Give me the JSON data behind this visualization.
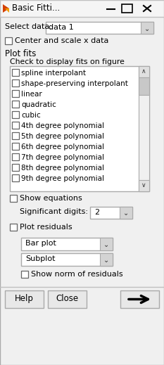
{
  "title": "Basic Fitti...",
  "bg_color": "#f0f0f0",
  "select_data_label": "Select data:",
  "select_data_value": "data 1",
  "center_scale_label": "Center and scale x data",
  "plot_fits_label": "Plot fits",
  "check_display_label": "Check to display fits on figure",
  "fit_items": [
    "spline interpolant",
    "shape-preserving interpolant",
    "linear",
    "quadratic",
    "cubic",
    "4th degree polynomial",
    "5th degree polynomial",
    "6th degree polynomial",
    "7th degree polynomial",
    "8th degree polynomial",
    "9th degree polynomial"
  ],
  "show_equations_label": "Show equations",
  "significant_digits_label": "Significant digits:",
  "significant_digits_value": "2",
  "plot_residuals_label": "Plot residuals",
  "bar_plot_label": "Bar plot",
  "subplot_label": "Subplot",
  "show_norm_label": "Show norm of residuals",
  "help_label": "Help",
  "close_label": "Close"
}
